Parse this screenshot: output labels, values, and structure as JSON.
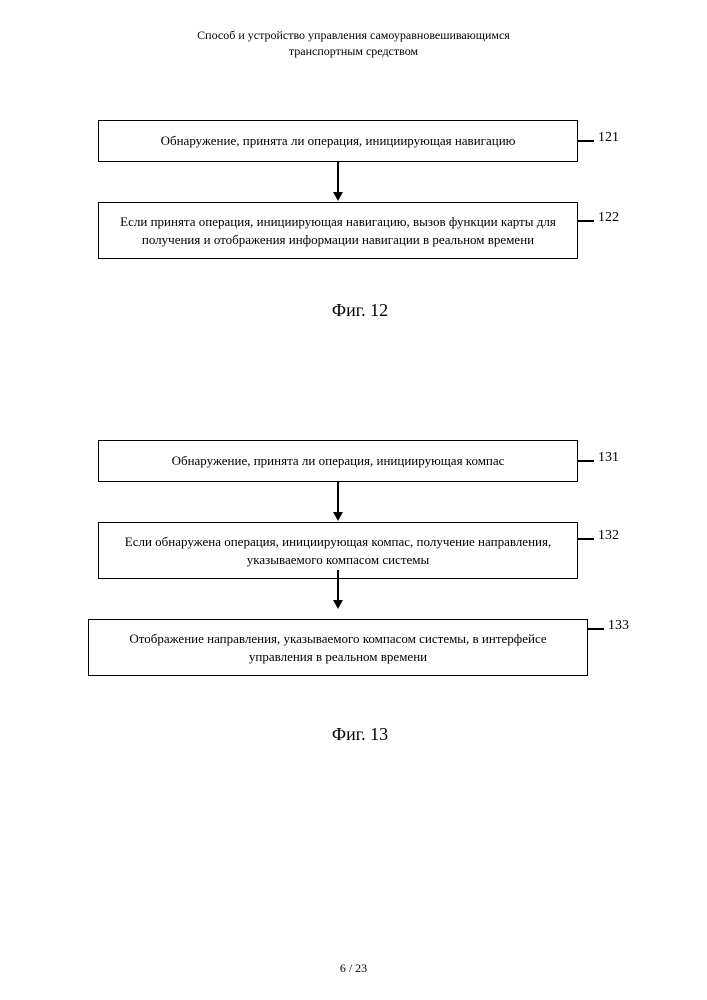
{
  "header": {
    "line1": "Способ и устройство управления самоуравновешивающимся",
    "line2": "транспортным средством"
  },
  "fig12": {
    "caption": "Фиг. 12",
    "nodes": [
      {
        "id": "121",
        "text": "Обнаружение, принята ли операция, инициирующая навигацию"
      },
      {
        "id": "122",
        "text": "Если принята операция, инициирующая навигацию, вызов функции карты для получения и отображения информации навигации в реальном времени"
      }
    ],
    "edges": [
      {
        "from": "121",
        "to": "122"
      }
    ],
    "box_border_color": "#000000",
    "background_color": "#ffffff",
    "font_size_box": 13,
    "font_size_label": 14,
    "font_size_caption": 18
  },
  "fig13": {
    "caption": "Фиг. 13",
    "nodes": [
      {
        "id": "131",
        "text": "Обнаружение, принята ли операция, инициирующая компас"
      },
      {
        "id": "132",
        "text": "Если обнаружена операция, инициирующая компас, получение направления, указываемого компасом системы"
      },
      {
        "id": "133",
        "text": "Отображение направления, указываемого компасом системы, в интерфейсе управления в реальном времени"
      }
    ],
    "edges": [
      {
        "from": "131",
        "to": "132"
      },
      {
        "from": "132",
        "to": "133"
      }
    ],
    "box_border_color": "#000000",
    "background_color": "#ffffff",
    "font_size_box": 13,
    "font_size_label": 14,
    "font_size_caption": 18
  },
  "footer": {
    "page": "6 / 23"
  },
  "colors": {
    "text": "#000000",
    "background": "#ffffff",
    "border": "#000000"
  }
}
